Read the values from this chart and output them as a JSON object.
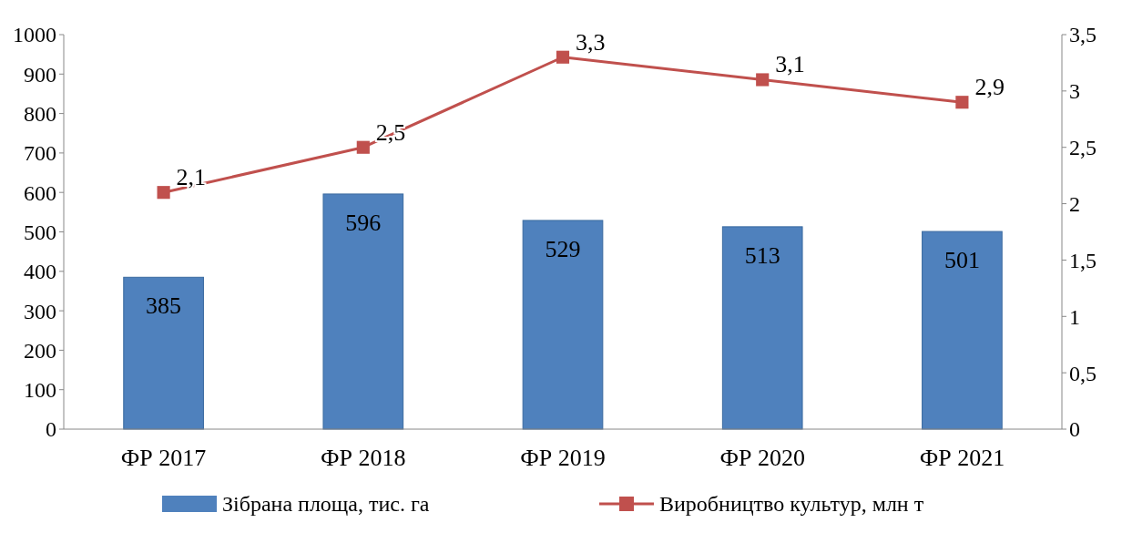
{
  "chart_data": {
    "type": "bar",
    "categories": [
      "ФР 2017",
      "ФР 2018",
      "ФР 2019",
      "ФР 2020",
      "ФР 2021"
    ],
    "series": [
      {
        "name": "Зібрана площа, тис. га",
        "color": "#4f81bd",
        "values": [
          385,
          596,
          529,
          513,
          501
        ],
        "value_labels": [
          "385",
          "596",
          "529",
          "513",
          "501"
        ]
      },
      {
        "name": "Виробництво культур, млн т",
        "type": "line",
        "axis": "y2",
        "color": "#c0504d",
        "marker": "square",
        "values": [
          2.1,
          2.5,
          3.3,
          3.1,
          2.9
        ],
        "value_labels": [
          "2,1",
          "2,5",
          "3,3",
          "3,1",
          "2,9"
        ]
      }
    ],
    "ylim": [
      0,
      1000
    ],
    "yticks": [
      0,
      100,
      200,
      300,
      400,
      500,
      600,
      700,
      800,
      900,
      1000
    ],
    "y2lim": [
      0,
      3.5
    ],
    "y2ticks": [
      0,
      {
        "value": 0.5,
        "label": "0,5"
      },
      1,
      {
        "value": 1.5,
        "label": "1,5"
      },
      2,
      {
        "value": 2.5,
        "label": "2,5"
      },
      3,
      {
        "value": 3.5,
        "label": "3,5"
      }
    ],
    "grid": false,
    "legend": "bottom"
  }
}
